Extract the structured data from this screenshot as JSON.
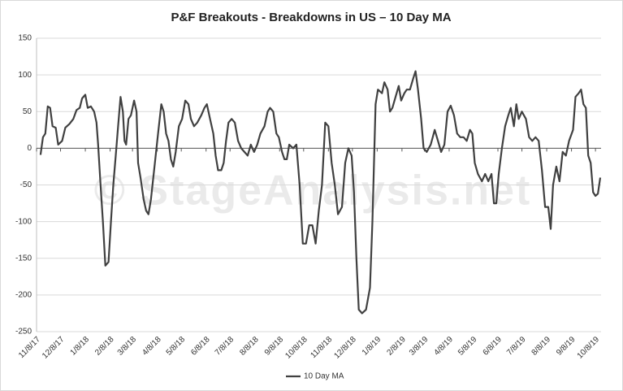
{
  "chart_data": {
    "type": "line",
    "title": "P&F Breakouts - Breakdowns in US – 10 Day MA",
    "watermark": "© StageAnalysis.net",
    "x": [
      "11/13/17",
      "11/16/17",
      "11/19/17",
      "11/22/17",
      "11/25/17",
      "11/28/17",
      "12/2/17",
      "12/5/17",
      "12/10/17",
      "12/14/17",
      "12/19/17",
      "12/24/17",
      "12/28/17",
      "1/1/18",
      "1/4/18",
      "1/8/18",
      "1/11/18",
      "1/15/18",
      "1/19/18",
      "1/22/18",
      "1/24/18",
      "1/27/18",
      "1/30/18",
      "2/2/18",
      "2/6/18",
      "2/9/18",
      "2/12/18",
      "2/15/18",
      "2/18/18",
      "2/21/18",
      "2/24/18",
      "2/26/18",
      "2/28/18",
      "3/3/18",
      "3/6/18",
      "3/10/18",
      "3/13/18",
      "3/15/18",
      "3/18/18",
      "3/22/18",
      "3/25/18",
      "3/28/18",
      "3/31/18",
      "4/5/18",
      "4/9/18",
      "4/13/18",
      "4/16/18",
      "4/19/18",
      "4/22/18",
      "4/25/18",
      "4/28/18",
      "5/1/18",
      "5/5/18",
      "5/9/18",
      "5/13/18",
      "5/17/18",
      "5/20/18",
      "5/24/18",
      "5/28/18",
      "6/2/18",
      "6/6/18",
      "6/9/18",
      "6/13/18",
      "6/17/18",
      "6/20/18",
      "6/23/18",
      "6/27/18",
      "6/30/18",
      "7/3/18",
      "7/6/18",
      "7/10/18",
      "7/14/18",
      "7/18/18",
      "7/22/18",
      "7/26/18",
      "7/30/18",
      "8/3/18",
      "8/7/18",
      "8/11/18",
      "8/15/18",
      "8/20/18",
      "8/24/18",
      "8/27/18",
      "8/31/18",
      "9/4/18",
      "9/7/18",
      "9/11/18",
      "9/14/18",
      "9/17/18",
      "9/20/18",
      "9/25/18",
      "9/29/18",
      "10/3/18",
      "10/7/18",
      "10/11/18",
      "10/15/18",
      "10/19/18",
      "10/23/18",
      "10/27/18",
      "10/31/18",
      "11/4/18",
      "11/8/18",
      "11/12/18",
      "11/16/18",
      "11/20/18",
      "11/25/18",
      "11/29/18",
      "12/3/18",
      "12/7/18",
      "12/10/18",
      "12/13/18",
      "12/16/18",
      "12/20/18",
      "12/25/18",
      "12/30/18",
      "1/2/19",
      "1/6/19",
      "1/9/19",
      "1/14/19",
      "1/17/19",
      "1/21/19",
      "1/24/19",
      "1/27/19",
      "1/31/19",
      "2/4/19",
      "2/7/19",
      "2/11/19",
      "2/14/19",
      "2/18/19",
      "2/22/19",
      "2/25/19",
      "2/28/19",
      "3/4/19",
      "3/7/19",
      "3/11/19",
      "3/16/19",
      "3/21/19",
      "3/25/19",
      "3/29/19",
      "4/2/19",
      "4/6/19",
      "4/10/19",
      "4/14/19",
      "4/18/19",
      "4/22/19",
      "4/26/19",
      "4/30/19",
      "5/4/19",
      "5/7/19",
      "5/10/19",
      "5/14/19",
      "5/19/19",
      "5/23/19",
      "5/27/19",
      "5/31/19",
      "6/3/19",
      "6/6/19",
      "6/9/19",
      "6/13/19",
      "6/17/19",
      "6/21/19",
      "6/24/19",
      "6/28/19",
      "7/1/19",
      "7/4/19",
      "7/8/19",
      "7/13/19",
      "7/17/19",
      "7/21/19",
      "7/25/19",
      "7/29/19",
      "8/2/19",
      "8/6/19",
      "8/10/19",
      "8/13/19",
      "8/16/19",
      "8/20/19",
      "8/24/19",
      "8/28/19",
      "9/1/19",
      "9/5/19",
      "9/10/19",
      "9/13/19",
      "9/17/19",
      "9/20/19",
      "9/23/19",
      "9/26/19",
      "9/29/19",
      "10/2/19",
      "10/5/19",
      "10/8/19",
      "10/11/19",
      "10/14/19"
    ],
    "series": [
      {
        "name": "10 Day MA",
        "color": "#404040",
        "values": [
          -9,
          15,
          20,
          57,
          55,
          30,
          28,
          5,
          10,
          28,
          33,
          40,
          52,
          55,
          68,
          73,
          55,
          57,
          50,
          35,
          5,
          -50,
          -100,
          -160,
          -155,
          -100,
          -50,
          -10,
          30,
          70,
          50,
          10,
          5,
          40,
          45,
          65,
          50,
          -20,
          -40,
          -70,
          -85,
          -90,
          -70,
          -20,
          20,
          60,
          50,
          20,
          10,
          -15,
          -25,
          -5,
          30,
          40,
          65,
          60,
          40,
          30,
          35,
          45,
          55,
          60,
          40,
          20,
          -10,
          -30,
          -30,
          -20,
          10,
          35,
          40,
          35,
          10,
          0,
          -5,
          -10,
          5,
          -5,
          5,
          20,
          30,
          50,
          55,
          50,
          20,
          15,
          -5,
          -15,
          -15,
          5,
          0,
          5,
          -50,
          -130,
          -130,
          -105,
          -105,
          -130,
          -85,
          -50,
          35,
          30,
          -20,
          -50,
          -90,
          -80,
          -20,
          0,
          -10,
          -60,
          -150,
          -220,
          -225,
          -220,
          -190,
          -100,
          60,
          80,
          75,
          90,
          80,
          50,
          55,
          70,
          85,
          65,
          75,
          80,
          80,
          95,
          105,
          80,
          40,
          0,
          -5,
          5,
          25,
          10,
          -5,
          5,
          50,
          58,
          45,
          20,
          15,
          15,
          10,
          25,
          20,
          -20,
          -35,
          -45,
          -35,
          -45,
          -35,
          -75,
          -75,
          -35,
          0,
          30,
          45,
          55,
          30,
          60,
          40,
          50,
          40,
          15,
          10,
          15,
          10,
          -30,
          -80,
          -80,
          -110,
          -50,
          -25,
          -45,
          -5,
          -10,
          10,
          25,
          70,
          75,
          80,
          60,
          55,
          -10,
          -20,
          -60,
          -65,
          -62,
          -40
        ]
      }
    ],
    "xlim": [
      "11/8/17",
      "10/15/19"
    ],
    "xticks": [
      "11/8/17",
      "12/8/17",
      "1/8/18",
      "2/8/18",
      "3/8/18",
      "4/8/18",
      "5/8/18",
      "6/8/18",
      "7/8/18",
      "8/8/18",
      "9/8/18",
      "10/8/18",
      "11/8/18",
      "12/8/18",
      "1/8/19",
      "2/8/19",
      "3/8/19",
      "4/8/19",
      "5/8/19",
      "6/8/19",
      "7/8/19",
      "8/8/19",
      "9/8/19",
      "10/8/19"
    ],
    "ylim": [
      -250,
      150
    ],
    "yticks": [
      -250,
      -200,
      -150,
      -100,
      -50,
      0,
      50,
      100,
      150
    ],
    "grid": true,
    "legend": "bottom"
  }
}
